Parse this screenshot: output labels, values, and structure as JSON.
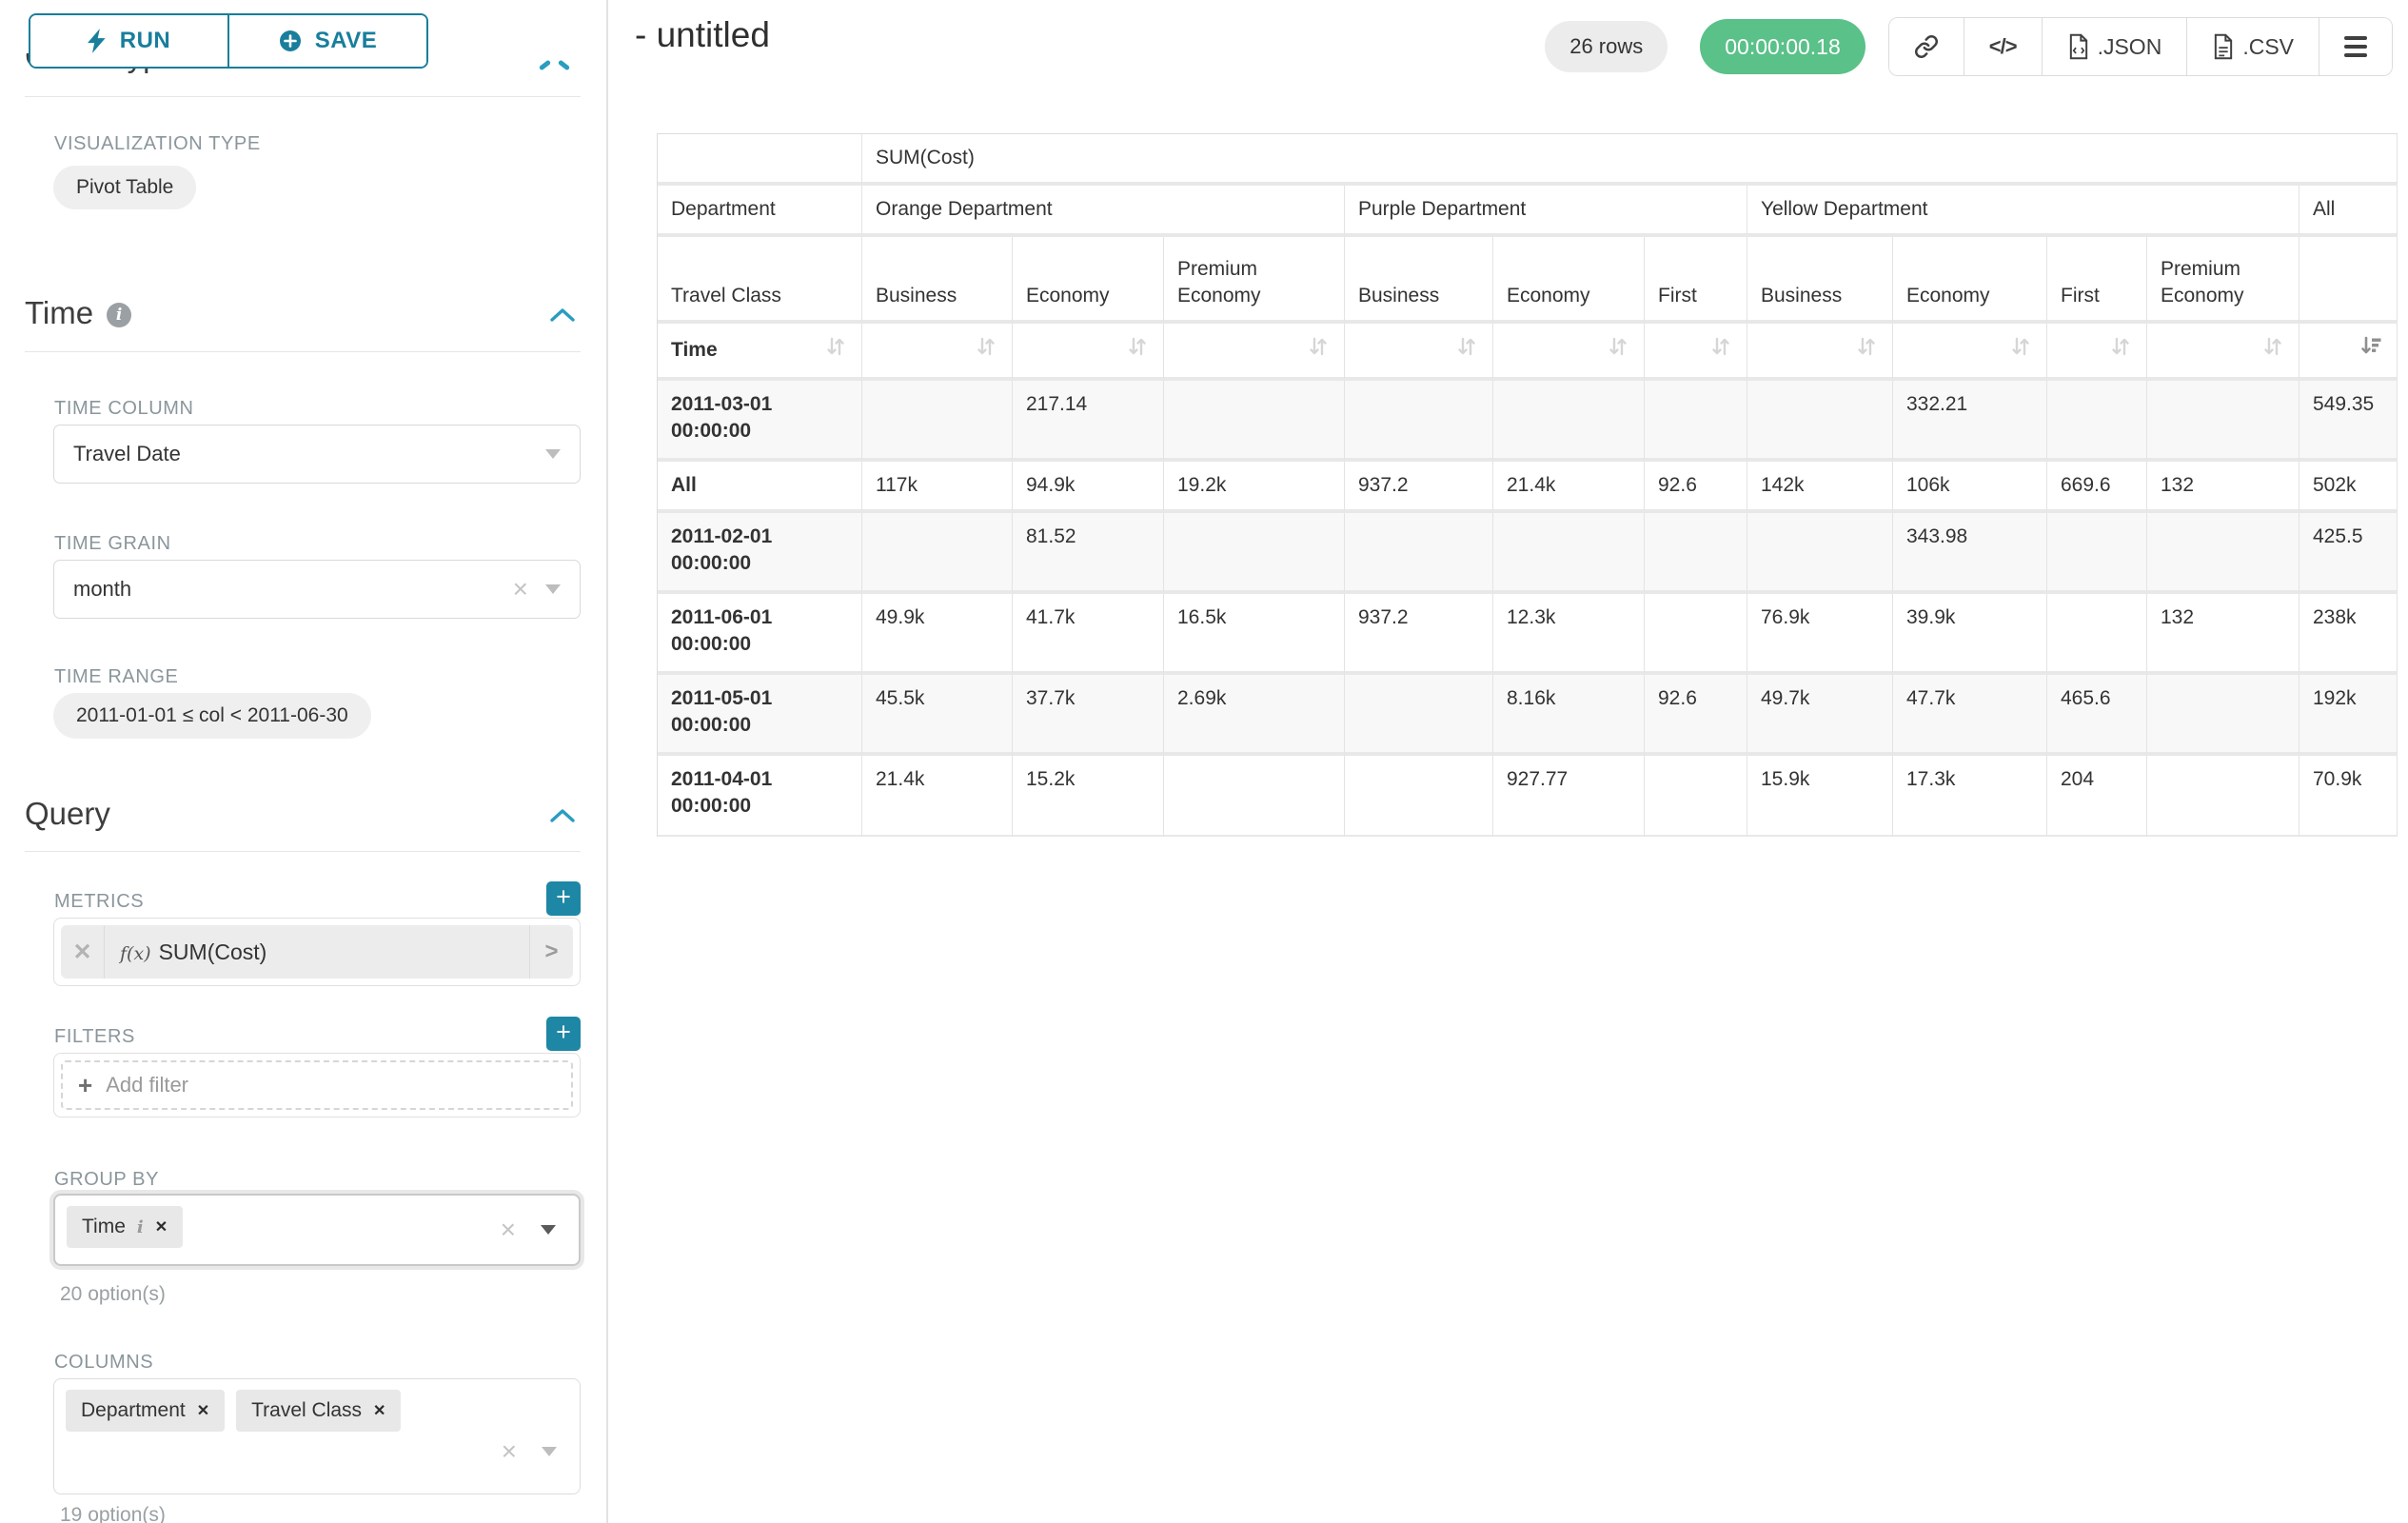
{
  "sidebar": {
    "run_label": "RUN",
    "save_label": "SAVE",
    "clipped_heading": "Chart Type",
    "visualization": {
      "label": "VISUALIZATION TYPE",
      "value": "Pivot Table"
    },
    "time": {
      "title": "Time",
      "column_label": "TIME COLUMN",
      "column_value": "Travel Date",
      "grain_label": "TIME GRAIN",
      "grain_value": "month",
      "range_label": "TIME RANGE",
      "range_value": "2011-01-01 ≤ col < 2011-06-30"
    },
    "query": {
      "title": "Query",
      "metrics_label": "METRICS",
      "metric_fx": "f(x)",
      "metric_value": "SUM(Cost)",
      "filters_label": "FILTERS",
      "add_filter": "Add filter",
      "group_by_label": "GROUP BY",
      "group_by_values": [
        "Time"
      ],
      "group_by_hint": "20 option(s)",
      "columns_label": "COLUMNS",
      "columns_values": [
        "Department",
        "Travel Class"
      ],
      "columns_hint": "19 option(s)"
    }
  },
  "header": {
    "title": "- untitled",
    "row_count": "26 rows",
    "timer": "00:00:00.18",
    "json_label": ".JSON",
    "csv_label": ".CSV"
  },
  "pivot": {
    "metric_label": "SUM(Cost)",
    "dim_row1_label": "Department",
    "dim_row2_label": "Travel Class",
    "dim_row3_label": "Time",
    "col_groups": [
      {
        "label": "Orange Department",
        "leaves": [
          "Business",
          "Economy",
          "Premium Economy"
        ]
      },
      {
        "label": "Purple Department",
        "leaves": [
          "Business",
          "Economy",
          "First"
        ]
      },
      {
        "label": "Yellow Department",
        "leaves": [
          "Business",
          "Economy",
          "First",
          "Premium Economy"
        ]
      },
      {
        "label": "All",
        "leaves": [
          ""
        ]
      }
    ],
    "sort": {
      "active_col": "All",
      "direction": "desc"
    },
    "rows": [
      {
        "label": "2011-03-01 00:00:00",
        "values": [
          "",
          "217.14",
          "",
          "",
          "",
          "",
          "",
          "332.21",
          "",
          "",
          "549.35"
        ]
      },
      {
        "label": "All",
        "values": [
          "117k",
          "94.9k",
          "19.2k",
          "937.2",
          "21.4k",
          "92.6",
          "142k",
          "106k",
          "669.6",
          "132",
          "502k"
        ]
      },
      {
        "label": "2011-02-01 00:00:00",
        "values": [
          "",
          "81.52",
          "",
          "",
          "",
          "",
          "",
          "343.98",
          "",
          "",
          "425.5"
        ]
      },
      {
        "label": "2011-06-01 00:00:00",
        "values": [
          "49.9k",
          "41.7k",
          "16.5k",
          "937.2",
          "12.3k",
          "",
          "76.9k",
          "39.9k",
          "",
          "132",
          "238k"
        ]
      },
      {
        "label": "2011-05-01 00:00:00",
        "values": [
          "45.5k",
          "37.7k",
          "2.69k",
          "",
          "8.16k",
          "92.6",
          "49.7k",
          "47.7k",
          "465.6",
          "",
          "192k"
        ]
      },
      {
        "label": "2011-04-01 00:00:00",
        "values": [
          "21.4k",
          "15.2k",
          "",
          "",
          "927.77",
          "",
          "15.9k",
          "17.3k",
          "204",
          "",
          "70.9k"
        ]
      }
    ]
  }
}
